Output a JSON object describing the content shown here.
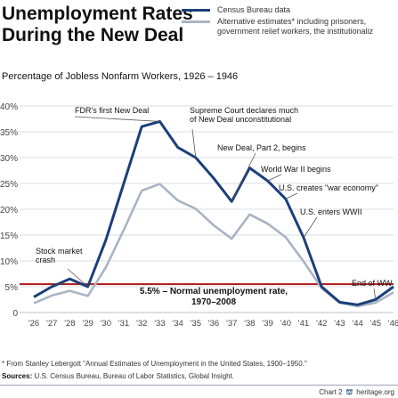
{
  "title": "Unemployment Rates\nDuring the New Deal",
  "legend": [
    {
      "label": "Census Bureau data",
      "color": "#1b3f7a"
    },
    {
      "label": "Alternative estimates* including prisoners,\ngovernment relief workers, the institutionaliz",
      "color": "#a9b4c4"
    }
  ],
  "subtitle": "Percentage of Jobless Nonfarm Workers, 1926 – 1946",
  "footnote": "* From Stanley Lebergott \"Annual Estimates of Unemployment in the United States, 1900–1950.\"",
  "sources": {
    "label": "Sources:",
    "text": "U.S. Census Bureau, Bureau of Labor Statistics, Global Insight."
  },
  "credit": {
    "chart": "Chart 2",
    "site": "heritage.org"
  },
  "chart_data": {
    "type": "line",
    "x": [
      1926,
      1927,
      1928,
      1929,
      1930,
      1931,
      1932,
      1933,
      1934,
      1935,
      1936,
      1937,
      1938,
      1939,
      1940,
      1941,
      1942,
      1943,
      1944,
      1945,
      1946
    ],
    "xticks": [
      "'26",
      "'27",
      "'28",
      "'29",
      "'30",
      "'31",
      "'32",
      "'33",
      "'34",
      "'35",
      "'36",
      "'37",
      "'38",
      "'39",
      "'40",
      "'41",
      "'42",
      "'43",
      "'44",
      "'45",
      "'46"
    ],
    "yticks": [
      "0",
      "5%",
      "10%",
      "15%",
      "20%",
      "25%",
      "30%",
      "35%",
      "40%"
    ],
    "ylim": [
      0,
      40
    ],
    "series": [
      {
        "name": "Census Bureau data",
        "color": "#1b3f7a",
        "values": [
          3,
          5,
          6.5,
          5,
          14,
          25,
          36,
          37,
          32,
          30,
          26,
          21.5,
          28,
          25.5,
          22,
          14.5,
          5,
          2,
          1.5,
          2.5,
          5
        ]
      },
      {
        "name": "Alternative estimates* including prisoners, government relief workers, the institutionaliz",
        "color": "#a9b4c4",
        "values": [
          1.8,
          3.3,
          4.2,
          3.2,
          8.7,
          16,
          23.6,
          24.9,
          21.7,
          20.1,
          16.9,
          14.3,
          19,
          17.2,
          14.6,
          9.9,
          4.7,
          1.9,
          1.2,
          1.9,
          3.9
        ]
      }
    ],
    "reference_line": {
      "value": 5.5,
      "label": "5.5% – Normal unemployment rate,\n1970–2008",
      "color": "#b01818"
    },
    "annotations": [
      {
        "text": "FDR's first New Deal",
        "x": 1933
      },
      {
        "text": "Supreme Court declares much\nof New Deal unconstitutional",
        "x": 1935
      },
      {
        "text": "New Deal, Part 2, begins",
        "x": 1937
      },
      {
        "text": "World War II begins",
        "x": 1939
      },
      {
        "text": "U.S. creates \"war economy\"",
        "x": 1940
      },
      {
        "text": "U.S. enters WWII",
        "x": 1941
      },
      {
        "text": "Stock market\ncrash",
        "x": 1929
      },
      {
        "text": "End of WW",
        "x": 1945
      }
    ]
  }
}
